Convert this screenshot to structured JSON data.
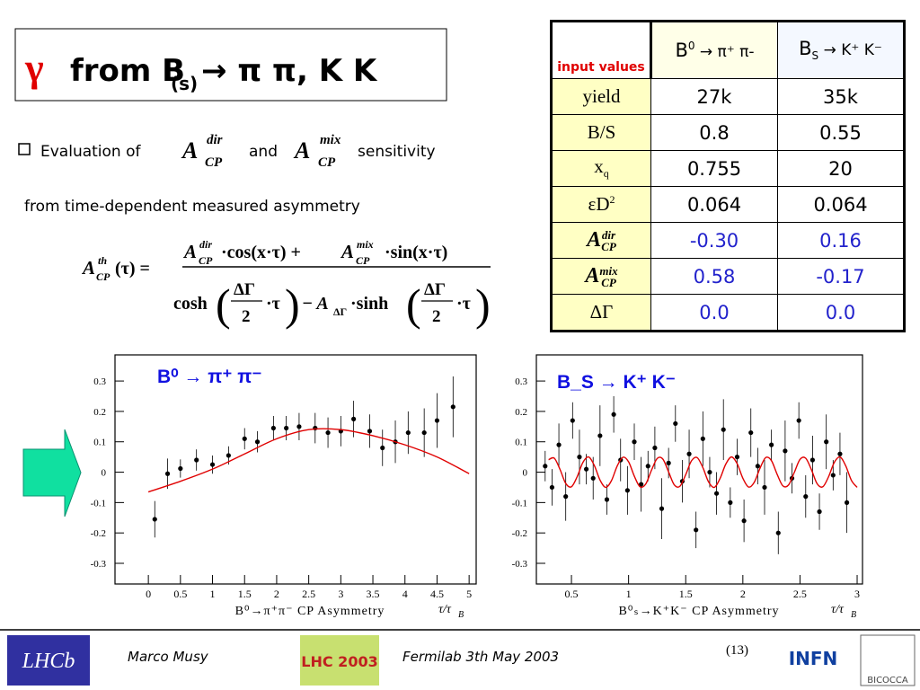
{
  "title": {
    "symbol": "γ",
    "text": "from B",
    "sub": "(s)",
    "rest": "→ π π, K K"
  },
  "bullet": {
    "pre": "Evaluation of",
    "and": "and",
    "post": "sensitivity",
    "line2": "from time-dependent measured asymmetry",
    "a": "A",
    "dir": "dir",
    "mix": "mix",
    "cp": "CP"
  },
  "formula": {
    "lhs_sup": "th",
    "lhs_arg": "(τ) =",
    "cos": "·cos(x·τ) +",
    "sin": "·sin(x·τ)",
    "cosh": "cosh",
    "dg": "ΔΓ",
    "two": "2",
    "tau": "·τ",
    "minus_a": "− A",
    "sinh": "·sinh",
    "open": "(",
    "close": ")"
  },
  "table": {
    "corner": "input values",
    "headers": [
      {
        "text": "B",
        "sup": "0",
        "rest": " → π⁺ π-"
      },
      {
        "text": "B",
        "sub": "S",
        "rest": " → K⁺ K⁻"
      }
    ],
    "rows": [
      {
        "label": {
          "text": "yield"
        },
        "values": [
          "27k",
          "35k"
        ]
      },
      {
        "label": {
          "text": "B/S"
        },
        "values": [
          "0.8",
          "0.55"
        ]
      },
      {
        "label": {
          "text": "x",
          "sub": "q"
        },
        "values": [
          "0.755",
          "20"
        ]
      },
      {
        "label": {
          "text": "εD",
          "sup": "2"
        },
        "values": [
          "0.064",
          "0.064"
        ]
      },
      {
        "label": {
          "text": "A",
          "sup": "dir",
          "sub": "CP"
        },
        "values": [
          "-0.30",
          "0.16"
        ],
        "blue": true
      },
      {
        "label": {
          "text": "A",
          "sup": "mix",
          "sub": "CP"
        },
        "values": [
          "0.58",
          "-0.17"
        ],
        "blue": true
      },
      {
        "label": {
          "text": "ΔΓ"
        },
        "values": [
          "0.0",
          "0.0"
        ],
        "blue": true
      }
    ]
  },
  "chart_data": [
    {
      "type": "scatter",
      "title": "B⁰ → π⁺ π⁻",
      "x_label": "B⁰→π⁺π⁻ CP Asymmetry",
      "x_unit": "τ/τ",
      "x_unit_sub": "B",
      "xlim": [
        -0.52,
        5.11
      ],
      "ylim": [
        -0.368,
        0.386
      ],
      "xticks": [
        0,
        0.5,
        1,
        1.5,
        2,
        2.5,
        3,
        3.5,
        4,
        4.5,
        5
      ],
      "yticks": [
        -0.3,
        -0.2,
        -0.1,
        0,
        0.1,
        0.2,
        0.3
      ],
      "series": [
        {
          "type": "points",
          "color": "#000000",
          "x": [
            0.1,
            0.3,
            0.5,
            0.75,
            1.0,
            1.25,
            1.5,
            1.7,
            1.95,
            2.15,
            2.35,
            2.6,
            2.8,
            3.0,
            3.2,
            3.45,
            3.65,
            3.85,
            4.05,
            4.3,
            4.5,
            4.75
          ],
          "values": [
            -0.155,
            -0.005,
            0.012,
            0.04,
            0.025,
            0.055,
            0.11,
            0.1,
            0.145,
            0.145,
            0.15,
            0.145,
            0.13,
            0.135,
            0.175,
            0.135,
            0.08,
            0.1,
            0.13,
            0.13,
            0.17,
            0.215
          ],
          "errors": [
            0.06,
            0.05,
            0.03,
            0.035,
            0.03,
            0.03,
            0.035,
            0.035,
            0.04,
            0.04,
            0.045,
            0.05,
            0.05,
            0.05,
            0.06,
            0.055,
            0.06,
            0.07,
            0.07,
            0.08,
            0.09,
            0.1
          ]
        },
        {
          "type": "line",
          "color": "#e00000",
          "x": [
            0,
            0.5,
            1,
            1.5,
            2,
            2.5,
            3,
            3.5,
            4,
            4.5,
            5
          ],
          "values": [
            -0.065,
            -0.03,
            0.01,
            0.06,
            0.11,
            0.14,
            0.14,
            0.12,
            0.09,
            0.05,
            -0.005
          ]
        }
      ]
    },
    {
      "type": "scatter",
      "title": "B_S → K⁺ K⁻",
      "x_label": "B⁰ₛ→K⁺K⁻ CP Asymmetry",
      "x_unit": "τ/τ",
      "x_unit_sub": "B",
      "xlim": [
        0.193,
        3.047
      ],
      "ylim": [
        -0.368,
        0.386
      ],
      "xticks": [
        0.5,
        1,
        1.5,
        2,
        2.5,
        3
      ],
      "yticks": [
        -0.3,
        -0.2,
        -0.1,
        0,
        0.1,
        0.2,
        0.3
      ],
      "series": [
        {
          "type": "points",
          "color": "#000000",
          "x": [
            0.27,
            0.33,
            0.39,
            0.45,
            0.51,
            0.57,
            0.63,
            0.69,
            0.75,
            0.81,
            0.87,
            0.93,
            0.99,
            1.05,
            1.11,
            1.17,
            1.23,
            1.29,
            1.35,
            1.41,
            1.47,
            1.53,
            1.59,
            1.65,
            1.71,
            1.77,
            1.83,
            1.89,
            1.95,
            2.01,
            2.07,
            2.13,
            2.19,
            2.25,
            2.31,
            2.37,
            2.43,
            2.49,
            2.55,
            2.61,
            2.67,
            2.73,
            2.79,
            2.85,
            2.91
          ],
          "values": [
            0.02,
            -0.05,
            0.09,
            -0.08,
            0.17,
            0.05,
            0.01,
            -0.02,
            0.12,
            -0.09,
            0.19,
            0.04,
            -0.06,
            0.1,
            -0.04,
            0.02,
            0.08,
            -0.12,
            0.03,
            0.16,
            -0.03,
            0.06,
            -0.19,
            0.11,
            0.0,
            -0.07,
            0.14,
            -0.1,
            0.05,
            -0.16,
            0.13,
            0.02,
            -0.05,
            0.09,
            -0.2,
            0.07,
            -0.02,
            0.17,
            -0.08,
            0.04,
            -0.13,
            0.1,
            -0.01,
            0.06,
            -0.1
          ],
          "errors": [
            0.05,
            0.06,
            0.07,
            0.08,
            0.06,
            0.09,
            0.05,
            0.07,
            0.1,
            0.05,
            0.06,
            0.07,
            0.08,
            0.06,
            0.09,
            0.05,
            0.07,
            0.1,
            0.05,
            0.06,
            0.07,
            0.08,
            0.06,
            0.09,
            0.05,
            0.07,
            0.1,
            0.05,
            0.06,
            0.07,
            0.08,
            0.06,
            0.09,
            0.05,
            0.07,
            0.1,
            0.05,
            0.06,
            0.07,
            0.08,
            0.06,
            0.09,
            0.05,
            0.07,
            0.1
          ]
        },
        {
          "type": "line",
          "color": "#e00000",
          "x": [
            0.3,
            0.35,
            0.4,
            0.45,
            0.5,
            0.55,
            0.6,
            0.65,
            0.7,
            0.75,
            0.8,
            0.85,
            0.9,
            0.95,
            1.0,
            1.05,
            1.1,
            1.15,
            1.2,
            1.25,
            1.3,
            1.35,
            1.4,
            1.45,
            1.5,
            1.55,
            1.6,
            1.65,
            1.7,
            1.75,
            1.8,
            1.85,
            1.9,
            1.95,
            2.0,
            2.05,
            2.1,
            2.15,
            2.2,
            2.25,
            2.3,
            2.35,
            2.4,
            2.45,
            2.5,
            2.55,
            2.6,
            2.65,
            2.7,
            2.75,
            2.8,
            2.85,
            2.9,
            2.95,
            3.0
          ],
          "values": [
            0.041,
            0.046,
            0.009,
            -0.037,
            -0.048,
            -0.015,
            0.032,
            0.05,
            0.022,
            -0.026,
            -0.05,
            -0.028,
            0.02,
            0.049,
            0.034,
            -0.013,
            -0.048,
            -0.039,
            0.006,
            0.045,
            0.043,
            0.001,
            -0.042,
            -0.046,
            -0.008,
            0.037,
            0.048,
            0.015,
            -0.032,
            -0.05,
            -0.021,
            0.026,
            0.05,
            0.028,
            -0.02,
            -0.049,
            -0.033,
            0.013,
            0.048,
            0.038,
            -0.007,
            -0.045,
            -0.042,
            -0.001,
            0.042,
            0.046,
            0.008,
            -0.038,
            -0.048,
            -0.015,
            0.032,
            0.05,
            0.021,
            -0.027,
            -0.05
          ]
        }
      ]
    }
  ],
  "footer": {
    "author": "Marco Musy",
    "event": "Fermilab 3th May 2003",
    "page": "(13)",
    "logo_lhcb": "LHCb",
    "logo_lhc": "LHC 2003",
    "logo_infn": "INFN",
    "logo_univ": "BICOCCA"
  }
}
